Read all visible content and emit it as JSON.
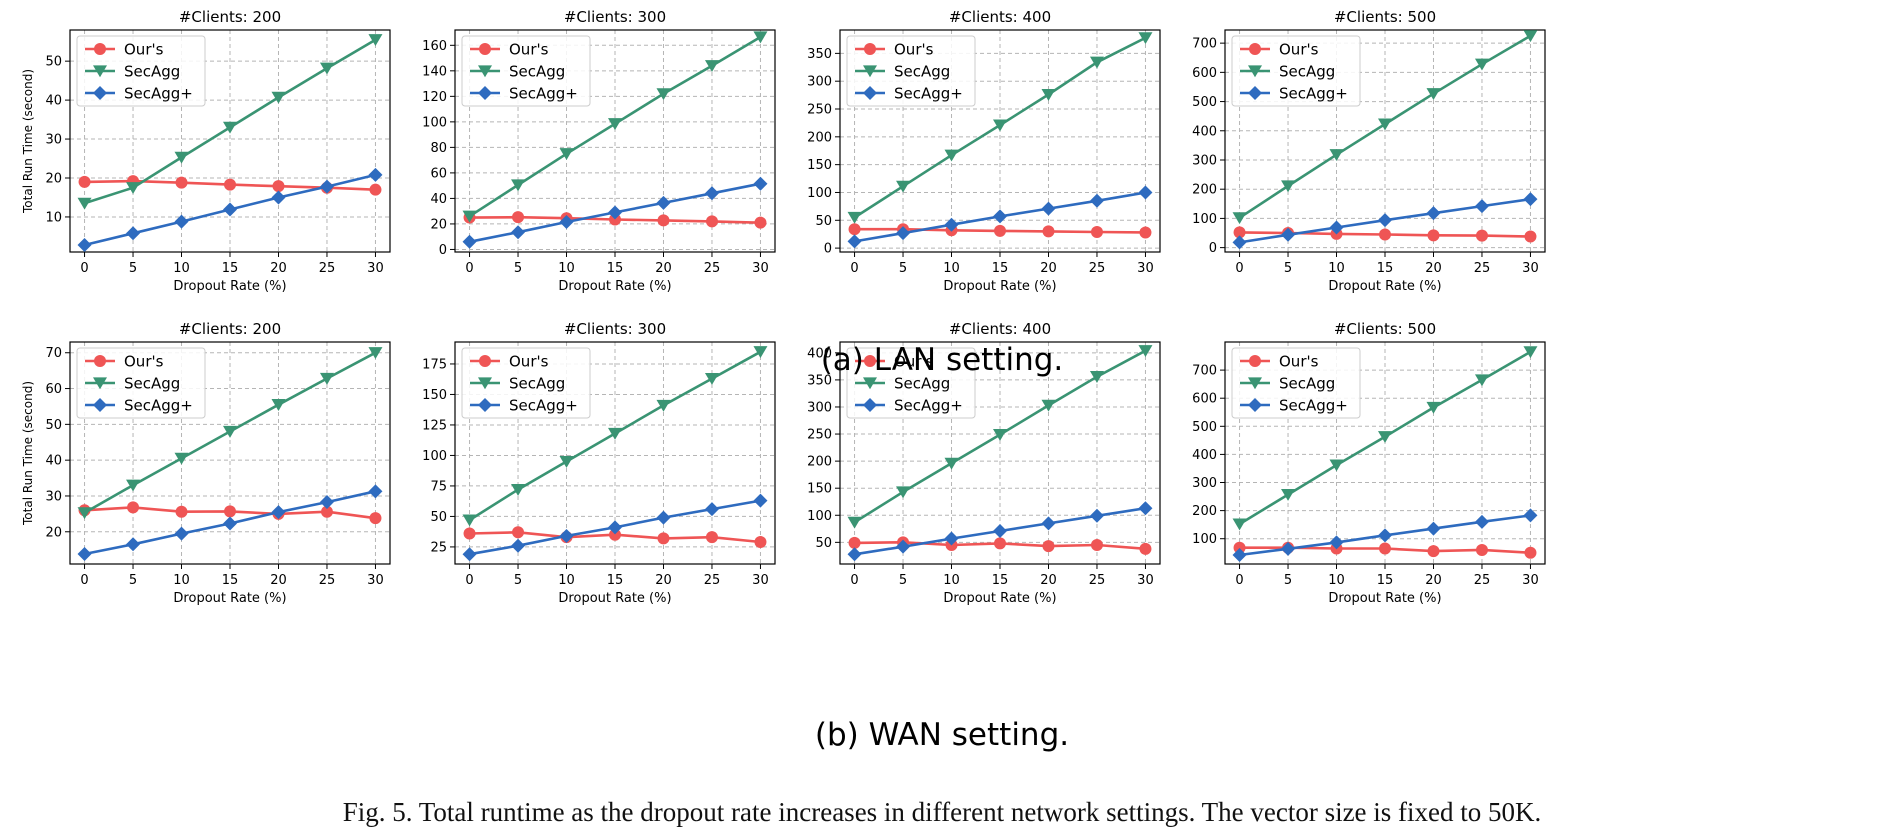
{
  "colors": {
    "ours": "#ef5555",
    "secagg": "#3a9473",
    "secaggplus": "#2e6bbf",
    "grid": "#b5b5b5"
  },
  "rows": [
    {
      "caption": "(a) LAN setting.",
      "ylabel": "Total Run Time (second)"
    },
    {
      "caption": "(b) WAN setting.",
      "ylabel": "Total Run Time (second)"
    }
  ],
  "figure_caption": "Fig. 5.   Total runtime as the dropout rate increases in different network settings. The vector size is fixed to 50K.",
  "chart_data": [
    {
      "type": "line",
      "title": "#Clients: 200",
      "xlabel": "Dropout Rate (%)",
      "ylabel": "Total Run Time (second)",
      "x": [
        0,
        5,
        10,
        15,
        20,
        25,
        30
      ],
      "xticks": [
        0,
        5,
        10,
        15,
        20,
        25,
        30
      ],
      "ylim": [
        1,
        58
      ],
      "yticks": [
        10,
        20,
        30,
        40,
        50
      ],
      "grid": true,
      "legend": "top-left",
      "series": [
        {
          "name": "Our's",
          "marker": "circle",
          "values": [
            19.0,
            19.2,
            18.8,
            18.3,
            17.9,
            17.5,
            17.0
          ]
        },
        {
          "name": "SecAgg",
          "marker": "triangle-down",
          "values": [
            13.5,
            17.5,
            25.3,
            33.0,
            40.7,
            48.2,
            55.5
          ]
        },
        {
          "name": "SecAgg+",
          "marker": "diamond",
          "values": [
            2.8,
            5.8,
            8.8,
            11.9,
            15.0,
            17.8,
            20.8
          ]
        }
      ]
    },
    {
      "type": "line",
      "title": "#Clients: 300",
      "xlabel": "Dropout Rate (%)",
      "ylabel": "",
      "x": [
        0,
        5,
        10,
        15,
        20,
        25,
        30
      ],
      "xticks": [
        0,
        5,
        10,
        15,
        20,
        25,
        30
      ],
      "ylim": [
        -2,
        172
      ],
      "yticks": [
        0,
        20,
        40,
        60,
        80,
        100,
        120,
        140,
        160
      ],
      "grid": true,
      "legend": "top-left",
      "series": [
        {
          "name": "Our's",
          "marker": "circle",
          "values": [
            25.0,
            25.3,
            24.5,
            23.5,
            22.8,
            22.0,
            21.0
          ]
        },
        {
          "name": "SecAgg",
          "marker": "triangle-down",
          "values": [
            26.0,
            50.5,
            75.0,
            98.5,
            122.0,
            144.0,
            166.5
          ]
        },
        {
          "name": "SecAgg+",
          "marker": "diamond",
          "values": [
            6.0,
            13.5,
            21.5,
            29.0,
            36.5,
            44.0,
            51.5
          ]
        }
      ]
    },
    {
      "type": "line",
      "title": "#Clients: 400",
      "xlabel": "Dropout Rate (%)",
      "ylabel": "",
      "x": [
        0,
        5,
        10,
        15,
        20,
        25,
        30
      ],
      "xticks": [
        0,
        5,
        10,
        15,
        20,
        25,
        30
      ],
      "ylim": [
        -7,
        392
      ],
      "yticks": [
        0,
        50,
        100,
        150,
        200,
        250,
        300,
        350
      ],
      "grid": true,
      "legend": "top-left",
      "series": [
        {
          "name": "Our's",
          "marker": "circle",
          "values": [
            34,
            34,
            32,
            31,
            30,
            29,
            28
          ]
        },
        {
          "name": "SecAgg",
          "marker": "triangle-down",
          "values": [
            55,
            111,
            167,
            221,
            276,
            334,
            378
          ]
        },
        {
          "name": "SecAgg+",
          "marker": "diamond",
          "values": [
            12,
            27,
            42,
            57,
            71,
            85,
            100
          ]
        }
      ]
    },
    {
      "type": "line",
      "title": "#Clients: 500",
      "xlabel": "Dropout Rate (%)",
      "ylabel": "",
      "x": [
        0,
        5,
        10,
        15,
        20,
        25,
        30
      ],
      "xticks": [
        0,
        5,
        10,
        15,
        20,
        25,
        30
      ],
      "ylim": [
        -15,
        745
      ],
      "yticks": [
        0,
        100,
        200,
        300,
        400,
        500,
        600,
        700
      ],
      "grid": true,
      "legend": "top-left",
      "series": [
        {
          "name": "Our's",
          "marker": "circle",
          "values": [
            52,
            50,
            47,
            45,
            42,
            41,
            38
          ]
        },
        {
          "name": "SecAgg",
          "marker": "triangle-down",
          "values": [
            102,
            211,
            318,
            423,
            527,
            628,
            725
          ]
        },
        {
          "name": "SecAgg+",
          "marker": "diamond",
          "values": [
            18,
            44,
            69,
            94,
            118,
            142,
            166
          ]
        }
      ]
    },
    {
      "type": "line",
      "title": "#Clients: 200",
      "xlabel": "Dropout Rate (%)",
      "ylabel": "Total Run Time (second)",
      "x": [
        0,
        5,
        10,
        15,
        20,
        25,
        30
      ],
      "xticks": [
        0,
        5,
        10,
        15,
        20,
        25,
        30
      ],
      "ylim": [
        11,
        73
      ],
      "yticks": [
        20,
        30,
        40,
        50,
        60,
        70
      ],
      "grid": true,
      "legend": "top-left",
      "series": [
        {
          "name": "Our's",
          "marker": "circle",
          "values": [
            26.0,
            26.8,
            25.6,
            25.7,
            25.0,
            25.6,
            23.8
          ]
        },
        {
          "name": "SecAgg",
          "marker": "triangle-down",
          "values": [
            25.3,
            33.0,
            40.5,
            48.0,
            55.5,
            62.8,
            70.0
          ]
        },
        {
          "name": "SecAgg+",
          "marker": "diamond",
          "values": [
            13.8,
            16.5,
            19.5,
            22.3,
            25.5,
            28.3,
            31.3
          ]
        }
      ]
    },
    {
      "type": "line",
      "title": "#Clients: 300",
      "xlabel": "Dropout Rate (%)",
      "ylabel": "",
      "x": [
        0,
        5,
        10,
        15,
        20,
        25,
        30
      ],
      "xticks": [
        0,
        5,
        10,
        15,
        20,
        25,
        30
      ],
      "ylim": [
        11,
        193
      ],
      "yticks": [
        25,
        50,
        75,
        100,
        125,
        150,
        175
      ],
      "grid": true,
      "legend": "top-left",
      "series": [
        {
          "name": "Our's",
          "marker": "circle",
          "values": [
            36,
            37,
            33,
            35,
            32,
            33,
            29
          ]
        },
        {
          "name": "SecAgg",
          "marker": "triangle-down",
          "values": [
            47,
            72,
            95,
            118,
            141,
            163,
            185
          ]
        },
        {
          "name": "SecAgg+",
          "marker": "diamond",
          "values": [
            19,
            26,
            34,
            41,
            49,
            56,
            63
          ]
        }
      ]
    },
    {
      "type": "line",
      "title": "#Clients: 400",
      "xlabel": "Dropout Rate (%)",
      "ylabel": "",
      "x": [
        0,
        5,
        10,
        15,
        20,
        25,
        30
      ],
      "xticks": [
        0,
        5,
        10,
        15,
        20,
        25,
        30
      ],
      "ylim": [
        10,
        420
      ],
      "yticks": [
        50,
        100,
        150,
        200,
        250,
        300,
        350,
        400
      ],
      "grid": true,
      "legend": "top-left",
      "series": [
        {
          "name": "Our's",
          "marker": "circle",
          "values": [
            49,
            50,
            45,
            48,
            43,
            45,
            38
          ]
        },
        {
          "name": "SecAgg",
          "marker": "triangle-down",
          "values": [
            87,
            143,
            196,
            249,
            303,
            356,
            404
          ]
        },
        {
          "name": "SecAgg+",
          "marker": "diamond",
          "values": [
            28,
            42,
            57,
            71,
            85,
            99,
            113
          ]
        }
      ]
    },
    {
      "type": "line",
      "title": "#Clients: 500",
      "xlabel": "Dropout Rate (%)",
      "ylabel": "",
      "x": [
        0,
        5,
        10,
        15,
        20,
        25,
        30
      ],
      "xticks": [
        0,
        5,
        10,
        15,
        20,
        25,
        30
      ],
      "ylim": [
        10,
        800
      ],
      "yticks": [
        100,
        200,
        300,
        400,
        500,
        600,
        700
      ],
      "grid": true,
      "legend": "top-left",
      "series": [
        {
          "name": "Our's",
          "marker": "circle",
          "values": [
            68,
            68,
            65,
            65,
            56,
            60,
            50
          ]
        },
        {
          "name": "SecAgg",
          "marker": "triangle-down",
          "values": [
            152,
            257,
            362,
            463,
            567,
            665,
            765
          ]
        },
        {
          "name": "SecAgg+",
          "marker": "diamond",
          "values": [
            42,
            64,
            87,
            112,
            136,
            160,
            183
          ]
        }
      ]
    }
  ]
}
